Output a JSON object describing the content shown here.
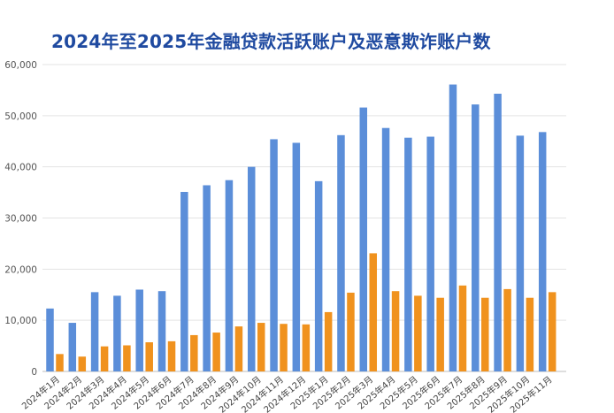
{
  "chart_data": {
    "type": "bar",
    "title": "2024年至2025年金融贷款活跃账户及恶意欺诈账户数",
    "categories": [
      "2024年1月",
      "2024年2月",
      "2024年3月",
      "2024年4月",
      "2024年5月",
      "2024年6月",
      "2024年7月",
      "2024年8月",
      "2024年9月",
      "2024年10月",
      "2024年11月",
      "2024年12月",
      "2025年1月",
      "2025年2月",
      "2025年3月",
      "2025年4月",
      "2025年5月",
      "2025年6月",
      "2025年7月",
      "2025年8月",
      "2025年9月",
      "2025年10月",
      "2025年11月"
    ],
    "series": [
      {
        "values": [
          12300,
          9500,
          15500,
          14800,
          16000,
          15700,
          35100,
          36400,
          37400,
          40000,
          45400,
          44700,
          37200,
          46200,
          51600,
          47600,
          45700,
          45900,
          56100,
          52200,
          54300,
          46100,
          46800
        ],
        "color": "#5b8ed9"
      },
      {
        "values": [
          3400,
          2900,
          4900,
          5100,
          5700,
          5900,
          7100,
          7600,
          8800,
          9500,
          9300,
          9200,
          11600,
          15400,
          23100,
          15700,
          14800,
          14400,
          16800,
          14400,
          16100,
          14400,
          15500
        ],
        "color": "#f0921e"
      }
    ],
    "ylim": [
      0,
      60000
    ],
    "yticks": [
      "0",
      "10,000",
      "20,000",
      "30,000",
      "40,000",
      "50,000",
      "60,000"
    ],
    "grid": true
  }
}
